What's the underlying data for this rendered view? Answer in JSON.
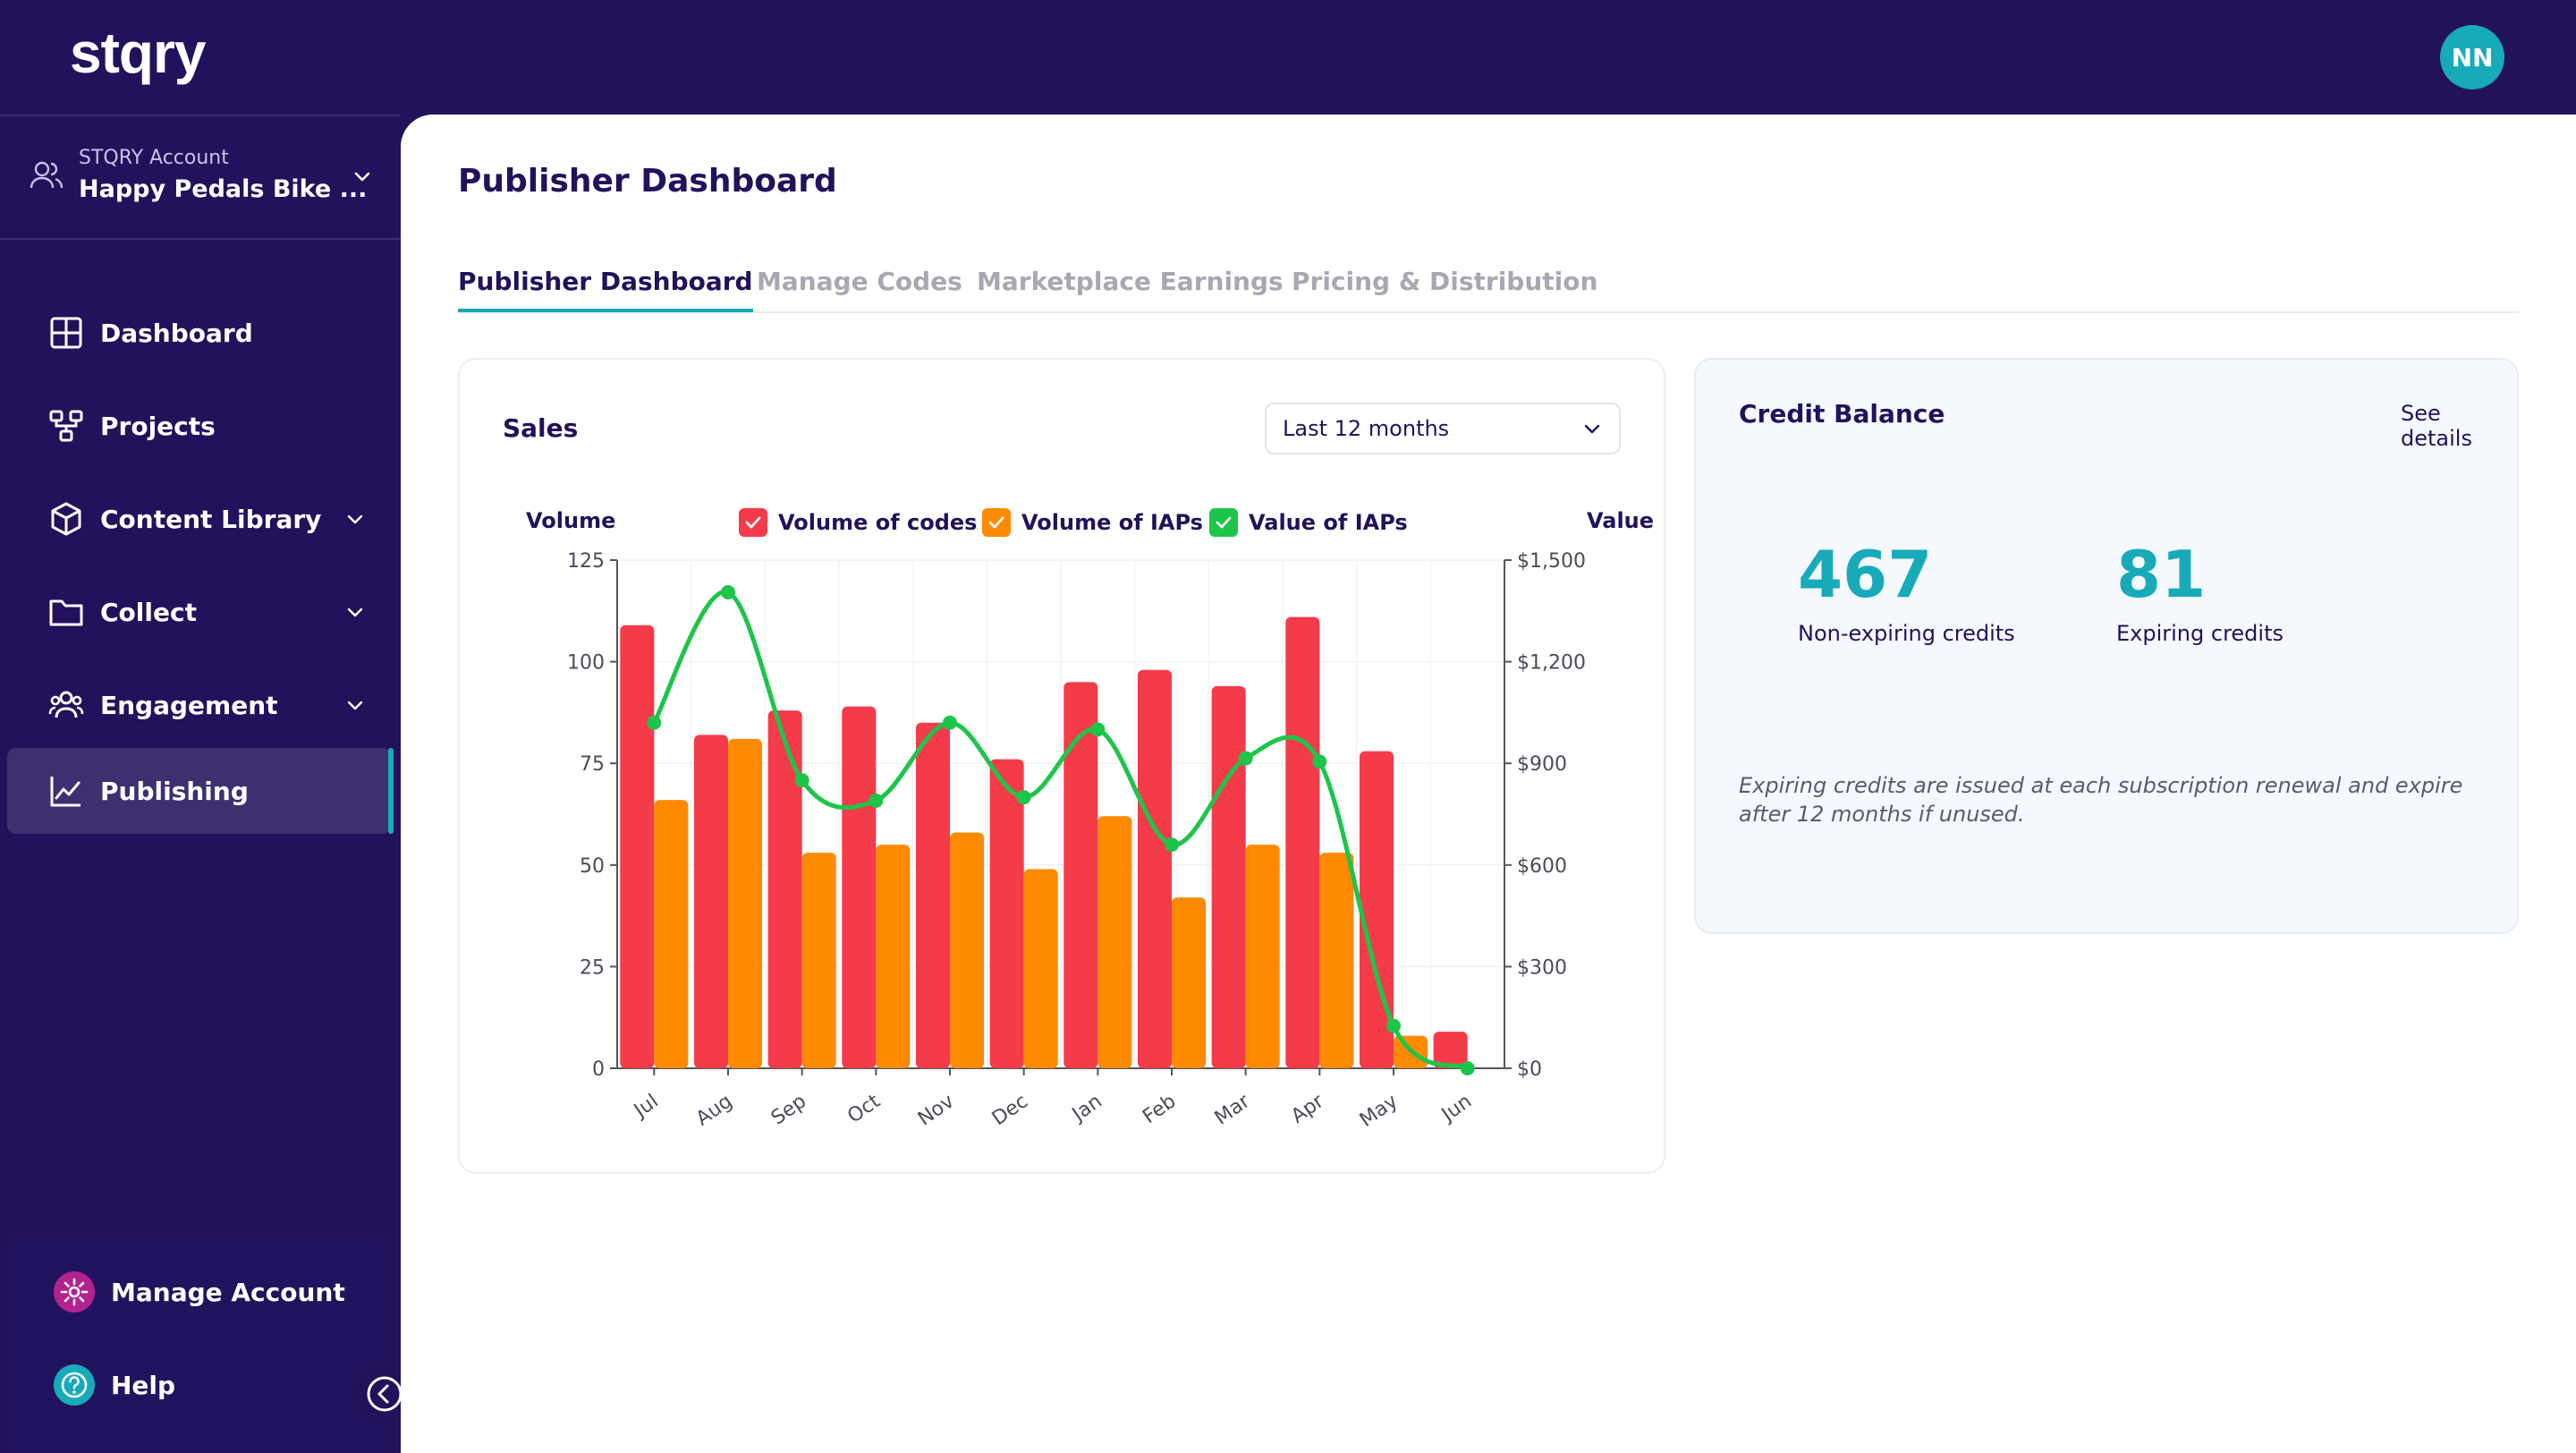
{
  "brand": {
    "logo_text": "stqry",
    "user_initials": "NN"
  },
  "account": {
    "label": "STQRY Account",
    "name": "Happy Pedals Bike ..."
  },
  "sidebar": {
    "items": [
      {
        "label": "Dashboard",
        "icon": "grid-icon"
      },
      {
        "label": "Projects",
        "icon": "hierarchy-icon"
      },
      {
        "label": "Content Library",
        "icon": "cube-icon",
        "expandable": true
      },
      {
        "label": "Collect",
        "icon": "folder-icon",
        "expandable": true
      },
      {
        "label": "Engagement",
        "icon": "users-icon",
        "expandable": true
      },
      {
        "label": "Publishing",
        "icon": "chart-line-icon",
        "active": true
      }
    ],
    "manage_account": "Manage Account",
    "help": "Help"
  },
  "page": {
    "title": "Publisher Dashboard",
    "tabs": [
      {
        "label": "Publisher Dashboard",
        "active": true
      },
      {
        "label": "Manage Codes"
      },
      {
        "label": "Marketplace Earnings"
      },
      {
        "label": "Pricing & Distribution"
      }
    ]
  },
  "sales": {
    "title": "Sales",
    "range_select": "Last 12 months"
  },
  "chart_data": {
    "type": "bar",
    "categories": [
      "Jul",
      "Aug",
      "Sep",
      "Oct",
      "Nov",
      "Dec",
      "Jan",
      "Feb",
      "Mar",
      "Apr",
      "May",
      "Jun"
    ],
    "left_axis": {
      "title": "Volume",
      "ylim": [
        0,
        125
      ],
      "ticks": [
        "0",
        "25",
        "50",
        "75",
        "100",
        "125"
      ]
    },
    "right_axis": {
      "title": "Value",
      "ylim": [
        0,
        1500
      ],
      "ticks": [
        "$0",
        "$300",
        "$600",
        "$900",
        "$1,200",
        "$1,500"
      ]
    },
    "series": [
      {
        "name": "Volume of codes",
        "type": "bar",
        "axis": "left",
        "color": "#f43b4a",
        "values": [
          109,
          82,
          88,
          89,
          85,
          76,
          95,
          98,
          94,
          111,
          78,
          9
        ]
      },
      {
        "name": "Volume of IAPs",
        "type": "bar",
        "axis": "left",
        "color": "#ff8a00",
        "values": [
          66,
          81,
          53,
          55,
          58,
          49,
          62,
          42,
          55,
          53,
          8,
          0
        ]
      },
      {
        "name": "Value of IAPs",
        "type": "line",
        "axis": "right",
        "color": "#1dc54a",
        "values": [
          1020,
          1405,
          850,
          790,
          1020,
          800,
          1000,
          660,
          915,
          905,
          125,
          0
        ]
      }
    ],
    "grid": true,
    "legend_position": "top-center"
  },
  "credit": {
    "title": "Credit Balance",
    "see_details": "See details",
    "non_expiring_value": "467",
    "non_expiring_label": "Non-expiring credits",
    "expiring_value": "81",
    "expiring_label": "Expiring credits",
    "note": "Expiring credits are issued at each subscription renewal and expire after 12 months if unused."
  }
}
